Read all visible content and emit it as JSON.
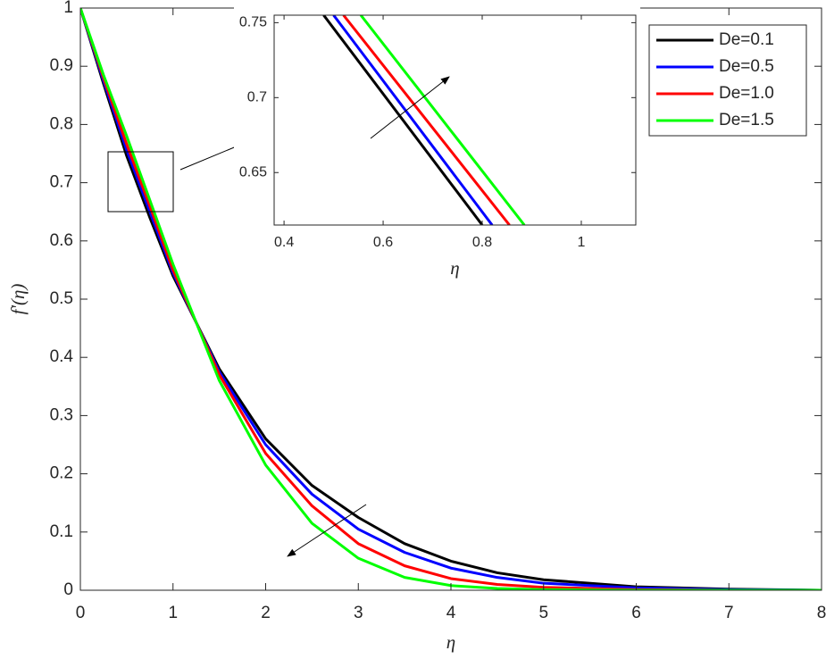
{
  "chart_data": [
    {
      "type": "line",
      "x_label": "η",
      "y_label": "f'(η)",
      "x": [
        0,
        0.25,
        0.5,
        0.75,
        1,
        1.5,
        2,
        2.5,
        3,
        3.5,
        4,
        4.5,
        5,
        6,
        7,
        8
      ],
      "series": [
        {
          "name": "De=0.1",
          "color": "#000000",
          "values": [
            1,
            0.87,
            0.746,
            0.64,
            0.54,
            0.38,
            0.26,
            0.18,
            0.125,
            0.08,
            0.05,
            0.03,
            0.018,
            0.006,
            0.002,
            0
          ]
        },
        {
          "name": "De=0.5",
          "color": "#0000ff",
          "values": [
            1,
            0.875,
            0.756,
            0.65,
            0.545,
            0.375,
            0.25,
            0.165,
            0.105,
            0.065,
            0.038,
            0.022,
            0.012,
            0.004,
            0.001,
            0
          ]
        },
        {
          "name": "De=1.0",
          "color": "#ff0000",
          "values": [
            1,
            0.88,
            0.766,
            0.66,
            0.55,
            0.37,
            0.235,
            0.145,
            0.08,
            0.042,
            0.02,
            0.01,
            0.005,
            0.001,
            0,
            0
          ]
        },
        {
          "name": "De=1.5",
          "color": "#00ff00",
          "values": [
            1,
            0.885,
            0.78,
            0.67,
            0.56,
            0.36,
            0.215,
            0.115,
            0.055,
            0.022,
            0.008,
            0.003,
            0.001,
            0,
            0,
            0
          ]
        }
      ],
      "xlim": [
        0,
        8
      ],
      "ylim": [
        0,
        1
      ],
      "xticks": [
        0,
        1,
        2,
        3,
        4,
        5,
        6,
        7,
        8
      ],
      "yticks": [
        0,
        0.1,
        0.2,
        0.3,
        0.4,
        0.5,
        0.6,
        0.7,
        0.8,
        0.9,
        1
      ],
      "legend": "upper right"
    },
    {
      "type": "line",
      "x_label": "η",
      "series": [
        {
          "color": "#000000",
          "x": [
            0.48,
            0.8
          ],
          "values": [
            0.755,
            0.615
          ]
        },
        {
          "color": "#0000ff",
          "x": [
            0.5,
            0.82
          ],
          "values": [
            0.755,
            0.615
          ]
        },
        {
          "color": "#ff0000",
          "x": [
            0.52,
            0.855
          ],
          "values": [
            0.755,
            0.615
          ]
        },
        {
          "color": "#00ff00",
          "x": [
            0.555,
            0.885
          ],
          "values": [
            0.755,
            0.615
          ]
        }
      ],
      "xlim": [
        0.38,
        1.11
      ],
      "ylim": [
        0.615,
        0.755
      ],
      "xticks": [
        0.4,
        0.6,
        0.8,
        1
      ],
      "yticks": [
        0.65,
        0.7,
        0.75
      ]
    }
  ]
}
